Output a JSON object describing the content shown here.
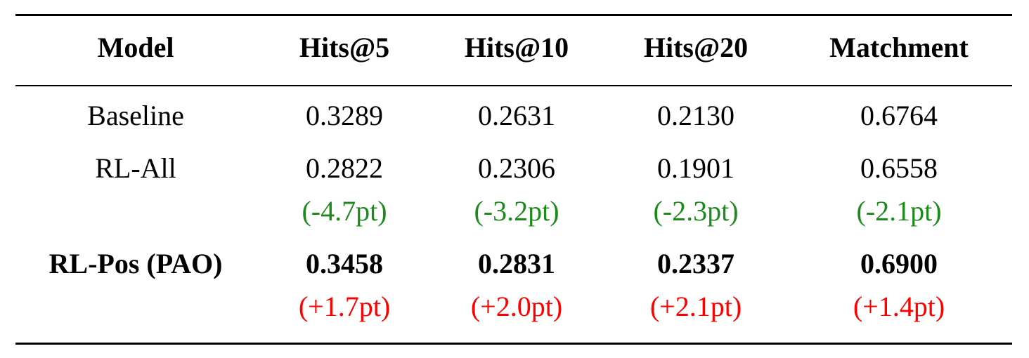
{
  "table": {
    "header": [
      "Model",
      "Hits@5",
      "Hits@10",
      "Hits@20",
      "Matchment"
    ],
    "rows": [
      {
        "model": "Baseline",
        "values": [
          "0.3289",
          "0.2631",
          "0.2130",
          "0.6764"
        ]
      },
      {
        "model": "RL-All",
        "values": [
          "0.2822",
          "0.2306",
          "0.1901",
          "0.6558"
        ],
        "deltas": [
          "(-4.7pt)",
          "(-3.2pt)",
          "(-2.3pt)",
          "(-2.1pt)"
        ]
      },
      {
        "model": "RL-Pos (PAO)",
        "values": [
          "0.3458",
          "0.2831",
          "0.2337",
          "0.6900"
        ],
        "deltas": [
          "(+1.7pt)",
          "(+2.0pt)",
          "(+2.1pt)",
          "(+1.4pt)"
        ]
      }
    ]
  }
}
